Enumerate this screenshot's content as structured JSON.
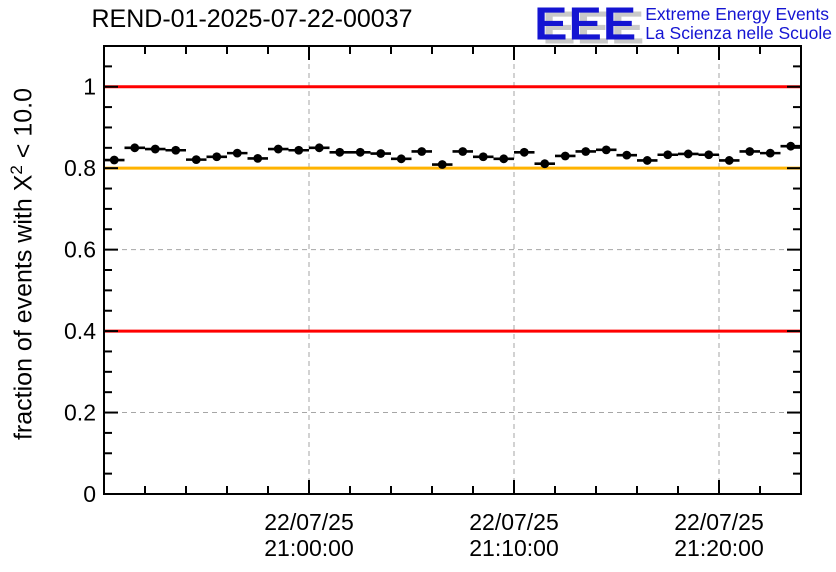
{
  "header": {
    "title": "REND-01-2025-07-22-00037",
    "logo": {
      "acronym": "EEE",
      "line1": "Extreme Energy Events",
      "line2": "La Scienza nelle Scuole",
      "blue": "#1414d2",
      "shadow_gray": "#c9c9c9"
    }
  },
  "chart_data": {
    "type": "scatter",
    "title": "REND-01-2025-07-22-00037",
    "ylabel_parts": {
      "prefix": "fraction of events with X",
      "sup": "2",
      "suffix": " < 10.0"
    },
    "ylim": [
      0,
      1.1
    ],
    "x_axis": {
      "unit": "minutes-from-left-edge",
      "range": [
        0,
        34
      ],
      "minor_step": 2,
      "major_ticks": [
        {
          "pos": 10,
          "label_date": "22/07/25",
          "label_time": "21:00:00"
        },
        {
          "pos": 20,
          "label_date": "22/07/25",
          "label_time": "21:10:00"
        },
        {
          "pos": 30,
          "label_date": "22/07/25",
          "label_time": "21:20:00"
        }
      ]
    },
    "y_axis": {
      "minor_step": 0.05,
      "major_ticks": [
        {
          "value": 0,
          "label": "0"
        },
        {
          "value": 0.2,
          "label": "0.2"
        },
        {
          "value": 0.4,
          "label": "0.4"
        },
        {
          "value": 0.6,
          "label": "0.6"
        },
        {
          "value": 0.8,
          "label": "0.8"
        },
        {
          "value": 1,
          "label": "1"
        }
      ]
    },
    "grid": {
      "show": true,
      "color": "#a6a6a6",
      "dash": "5,4"
    },
    "reference_lines": [
      {
        "y": 1.0,
        "color": "#ff0000"
      },
      {
        "y": 0.8,
        "color": "#ffb300"
      },
      {
        "y": 0.4,
        "color": "#ff0000"
      }
    ],
    "series": [
      {
        "name": "fraction-per-minute-bin",
        "marker": "filled-circle",
        "color": "#000000",
        "xerr": 0.5,
        "x": [
          0.5,
          1.5,
          2.5,
          3.5,
          4.5,
          5.5,
          6.5,
          7.5,
          8.5,
          9.5,
          10.5,
          11.5,
          12.5,
          13.5,
          14.5,
          15.5,
          16.5,
          17.5,
          18.5,
          19.5,
          20.5,
          21.5,
          22.5,
          23.5,
          24.5,
          25.5,
          26.5,
          27.5,
          28.5,
          29.5,
          30.5,
          31.5,
          32.5,
          33.5
        ],
        "y": [
          0.82,
          0.85,
          0.847,
          0.844,
          0.821,
          0.828,
          0.837,
          0.824,
          0.847,
          0.844,
          0.85,
          0.839,
          0.839,
          0.836,
          0.823,
          0.841,
          0.809,
          0.841,
          0.828,
          0.823,
          0.839,
          0.811,
          0.83,
          0.841,
          0.845,
          0.832,
          0.819,
          0.833,
          0.835,
          0.833,
          0.819,
          0.841,
          0.837,
          0.854
        ]
      }
    ]
  }
}
